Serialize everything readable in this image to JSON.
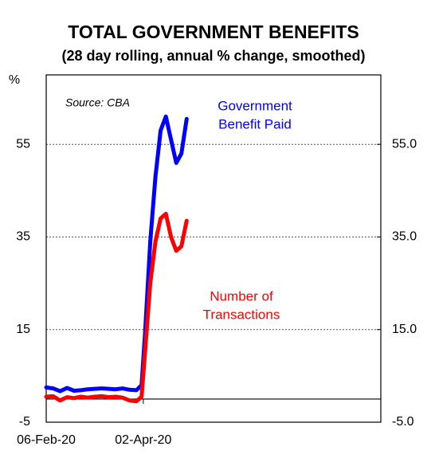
{
  "chart_data": {
    "type": "line",
    "title": "TOTAL GOVERNMENT BENEFITS",
    "subtitle": "(28 day rolling, annual % change, smoothed)",
    "y_axis_label": "%",
    "annotations": {
      "source": "Source: CBA",
      "benefit": [
        "Government",
        "Benefit Paid"
      ],
      "transactions": [
        "Number of",
        "Transactions"
      ]
    },
    "x": [
      "06-Feb-20",
      "10-Feb-20",
      "14-Feb-20",
      "18-Feb-20",
      "22-Feb-20",
      "26-Feb-20",
      "01-Mar-20",
      "05-Mar-20",
      "09-Mar-20",
      "13-Mar-20",
      "17-Mar-20",
      "21-Mar-20",
      "25-Mar-20",
      "29-Mar-20",
      "01-Apr-20",
      "03-Apr-20",
      "06-Apr-20",
      "09-Apr-20",
      "12-Apr-20",
      "15-Apr-20",
      "18-Apr-20",
      "21-Apr-20",
      "24-Apr-20",
      "27-Apr-20"
    ],
    "series": [
      {
        "name": "Government Benefit Paid",
        "color": "#0000ff",
        "values": [
          2.5,
          2.3,
          1.7,
          2.4,
          1.8,
          1.9,
          2.1,
          2.2,
          2.3,
          2.2,
          2.1,
          2.3,
          2.0,
          1.9,
          3,
          14,
          34,
          48,
          58,
          61,
          56,
          51,
          53,
          60.5
        ]
      },
      {
        "name": "Number of Transactions",
        "color": "#ff0000",
        "values": [
          0.5,
          0.6,
          -0.3,
          0.4,
          0.2,
          0.5,
          0.3,
          0.5,
          0.6,
          0.4,
          0.5,
          0.3,
          -0.3,
          -0.5,
          0.5,
          10,
          25,
          34,
          39,
          40,
          35,
          32,
          33,
          38.5
        ]
      }
    ],
    "xlim": [
      "06-Feb-20",
      "17-Aug-20"
    ],
    "xticks": [
      "06-Feb-20",
      "02-Apr-20"
    ],
    "ylim": [
      -5,
      70
    ],
    "yticks": [
      -5,
      15,
      35,
      55
    ],
    "y2lim": [
      -5,
      70
    ],
    "y2ticks": [
      {
        "value": -5,
        "label": "-5.0"
      },
      {
        "value": 15,
        "label": "15.0"
      },
      {
        "value": 35,
        "label": "35.0"
      },
      {
        "value": 55,
        "label": "55.0"
      }
    ],
    "grid": true
  }
}
